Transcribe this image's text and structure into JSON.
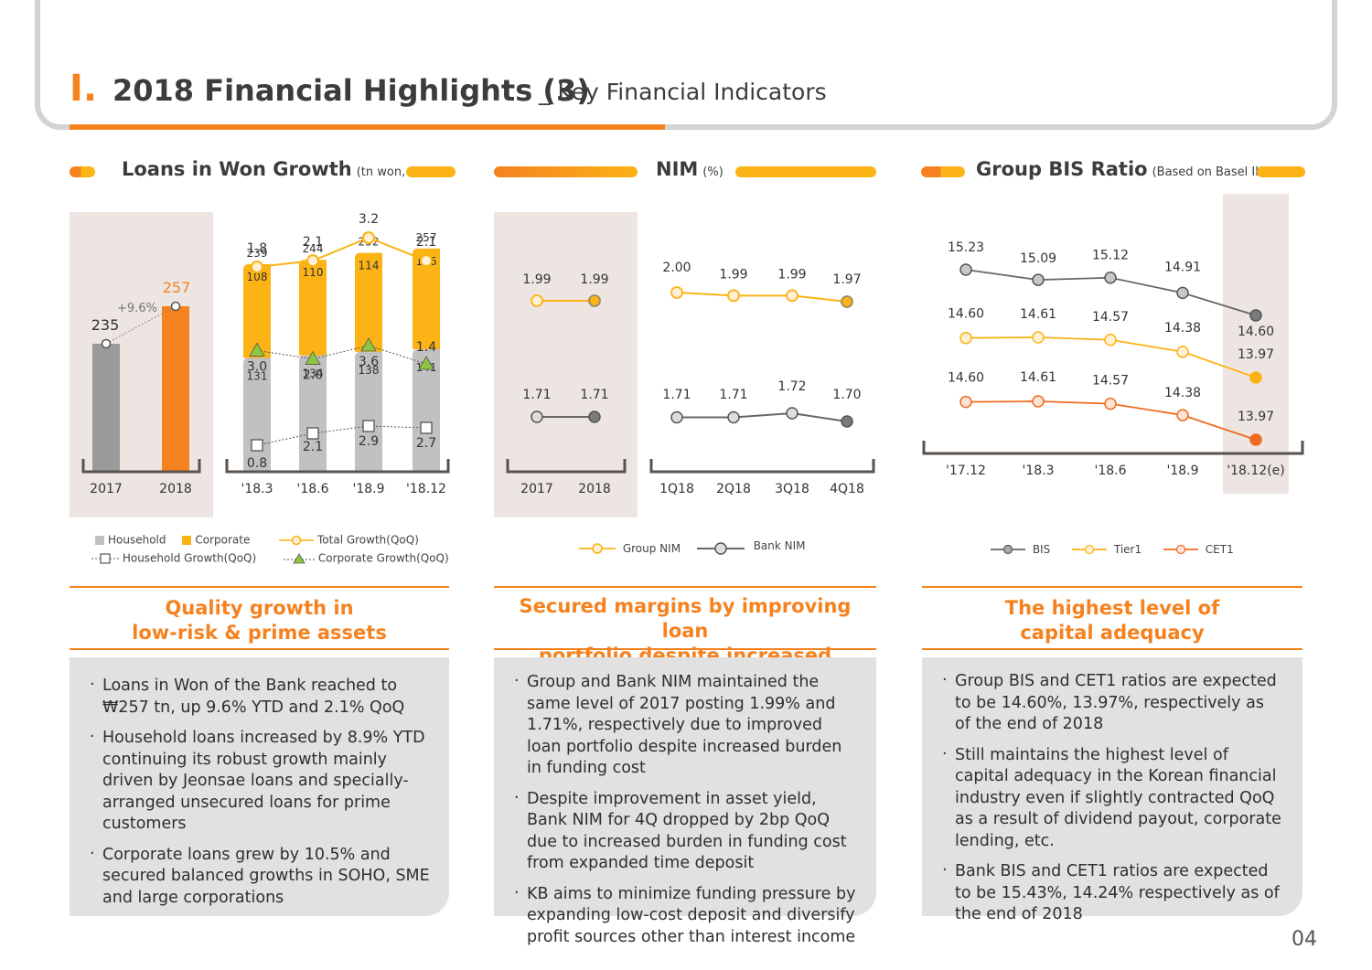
{
  "header": {
    "section_number": "I.",
    "title": "2018 Financial Highlights (3)",
    "subtitle": "_ Key Financial Indicators"
  },
  "colors": {
    "orange": "#f5821f",
    "yellow": "#fbb315",
    "dark_gray": "#7b7b7b",
    "light_gray": "#c1c1c1",
    "beige": "#ede5e1",
    "red_orange": "#ef6b21",
    "green": "#8dc63f"
  },
  "panels": {
    "loans": {
      "title": "Loans in Won Growth",
      "unit": "(tn won, %)",
      "legend": {
        "household": "Household",
        "corporate": "Corporate",
        "total_growth": "Total Growth(QoQ)",
        "household_growth": "Household Growth(QoQ)",
        "corporate_growth": "Corporate Growth(QoQ)"
      },
      "headline": [
        "Quality growth in",
        "low-risk & prime assets"
      ],
      "bullets": [
        "Loans in Won of the Bank reached to ₩257 tn, up 9.6% YTD and 2.1% QoQ",
        "Household loans increased by 8.9% YTD continuing its robust growth mainly driven by Jeonsae loans and specially-arranged unsecured loans for prime customers",
        "Corporate loans grew by 10.5% and secured balanced growths in SOHO, SME and large corporations"
      ]
    },
    "nim": {
      "title": "NIM",
      "unit": "(%)",
      "legend": {
        "group": "Group NIM",
        "bank": "Bank NIM"
      },
      "headline": [
        "Secured margins by improving loan",
        "portfolio despite increased funding cost"
      ],
      "bullets": [
        "Group and Bank NIM maintained the same level of 2017 posting 1.99% and 1.71%, respectively due to improved loan portfolio despite increased burden in funding cost",
        "Despite improvement in asset yield, Bank NIM for 4Q dropped by 2bp QoQ due to increased burden in funding cost from expanded time deposit",
        "KB aims to minimize funding pressure by expanding low-cost deposit and diversify profit sources other than interest income"
      ]
    },
    "bis": {
      "title": "Group BIS Ratio",
      "unit": "(Based on Basel III, %)",
      "legend": {
        "bis": "BIS",
        "tier1": "Tier1",
        "cet1": "CET1"
      },
      "headline": [
        "The highest level of",
        "capital adequacy"
      ],
      "bullets": [
        "Group BIS and CET1 ratios are expected to be 14.60%, 13.97%, respectively as of the end of 2018",
        "Still maintains the highest level of capital adequacy in the Korean financial industry even if slightly contracted QoQ as a result of dividend payout, corporate lending, etc.",
        "Bank BIS and CET1 ratios are expected to be 15.43%, 14.24% respectively as of the end of 2018"
      ]
    }
  },
  "chart_data": [
    {
      "type": "bar",
      "id": "loans_annual",
      "categories": [
        "2017",
        "2018"
      ],
      "values": [
        235,
        257
      ],
      "value_labels": [
        "235",
        "257"
      ],
      "annotation": "+9.6%"
    },
    {
      "type": "bar",
      "id": "loans_quarterly",
      "stacked": true,
      "categories": [
        "'18.3",
        "'18.6",
        "'18.9",
        "'18.12"
      ],
      "totals": [
        239,
        244,
        252,
        257
      ],
      "series": [
        {
          "name": "Household",
          "values": [
            131,
            134,
            138,
            141
          ]
        },
        {
          "name": "Corporate",
          "values": [
            108,
            110,
            114,
            116
          ]
        }
      ],
      "lines": [
        {
          "name": "Total Growth(QoQ)",
          "values": [
            1.8,
            2.1,
            3.2,
            2.1
          ]
        },
        {
          "name": "Household Growth(QoQ)",
          "values": [
            0.8,
            2.1,
            2.9,
            2.7
          ]
        },
        {
          "name": "Corporate Growth(QoQ)",
          "values": [
            3.0,
            2.0,
            3.6,
            1.4
          ]
        }
      ]
    },
    {
      "type": "line",
      "id": "nim_annual",
      "categories": [
        "2017",
        "2018"
      ],
      "series": [
        {
          "name": "Group NIM",
          "values": [
            1.99,
            1.99
          ],
          "labels": [
            "1.99",
            "1.99"
          ]
        },
        {
          "name": "Bank NIM",
          "values": [
            1.71,
            1.71
          ],
          "labels": [
            "1.71",
            "1.71"
          ]
        }
      ]
    },
    {
      "type": "line",
      "id": "nim_quarterly",
      "categories": [
        "1Q18",
        "2Q18",
        "3Q18",
        "4Q18"
      ],
      "series": [
        {
          "name": "Group NIM",
          "values": [
            2.0,
            1.99,
            1.99,
            1.97
          ],
          "labels": [
            "2.00",
            "1.99",
            "1.99",
            "1.97"
          ]
        },
        {
          "name": "Bank NIM",
          "values": [
            1.71,
            1.71,
            1.72,
            1.7
          ],
          "labels": [
            "1.71",
            "1.71",
            "1.72",
            "1.70"
          ]
        }
      ]
    },
    {
      "type": "line",
      "id": "bis_ratio",
      "categories": [
        "'17.12",
        "'18.3",
        "'18.6",
        "'18.9",
        "'18.12(e)"
      ],
      "series": [
        {
          "name": "BIS",
          "values": [
            15.23,
            15.09,
            15.12,
            14.91,
            14.6
          ],
          "labels": [
            "15.23",
            "15.09",
            "15.12",
            "14.91",
            "14.60"
          ]
        },
        {
          "name": "Tier1",
          "values": [
            14.6,
            14.61,
            14.57,
            14.38,
            13.97
          ],
          "labels": [
            "14.60",
            "14.61",
            "14.57",
            "14.38",
            "13.97"
          ]
        },
        {
          "name": "CET1",
          "values": [
            14.6,
            14.61,
            14.57,
            14.38,
            13.97
          ],
          "labels": [
            "14.60",
            "14.61",
            "14.57",
            "14.38",
            "13.97"
          ]
        }
      ]
    }
  ],
  "page_number": "04"
}
